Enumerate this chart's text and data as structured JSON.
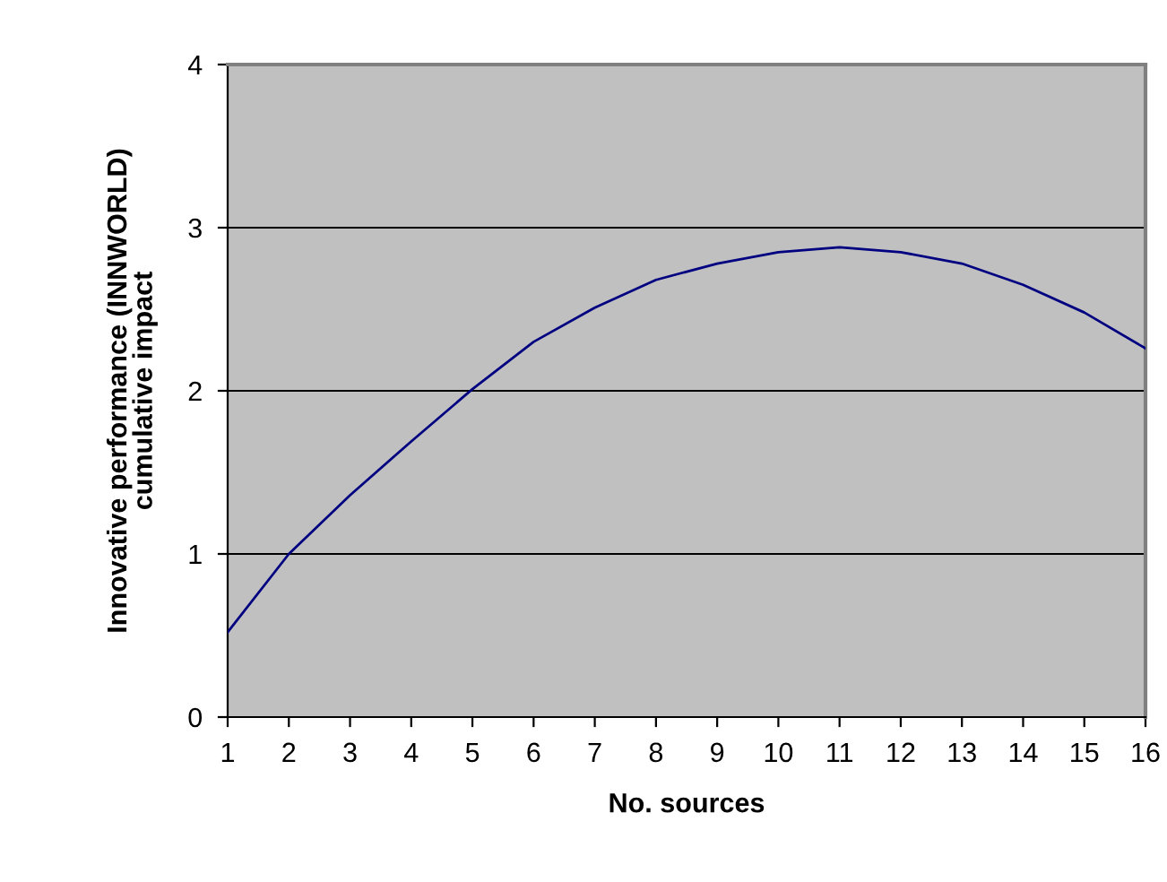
{
  "chart_data": {
    "type": "line",
    "xlabel": "No. sources",
    "ylabel": "Innovative performance (INNWORLD)\ncumulative impact",
    "x": [
      1,
      2,
      3,
      4,
      5,
      6,
      7,
      8,
      9,
      10,
      11,
      12,
      13,
      14,
      15,
      16
    ],
    "series": [
      {
        "color": "#000080",
        "values": [
          0.52,
          1.0,
          1.36,
          1.69,
          2.01,
          2.3,
          2.51,
          2.68,
          2.78,
          2.85,
          2.88,
          2.85,
          2.78,
          2.65,
          2.48,
          2.26
        ]
      }
    ],
    "xlim": [
      1,
      16
    ],
    "xticks": [
      1,
      2,
      3,
      4,
      5,
      6,
      7,
      8,
      9,
      10,
      11,
      12,
      13,
      14,
      15,
      16
    ],
    "ylim": [
      0,
      4
    ],
    "yticks": [
      0,
      1,
      2,
      3,
      4
    ],
    "grid": "y",
    "marker": "none",
    "line_style": "solid"
  }
}
